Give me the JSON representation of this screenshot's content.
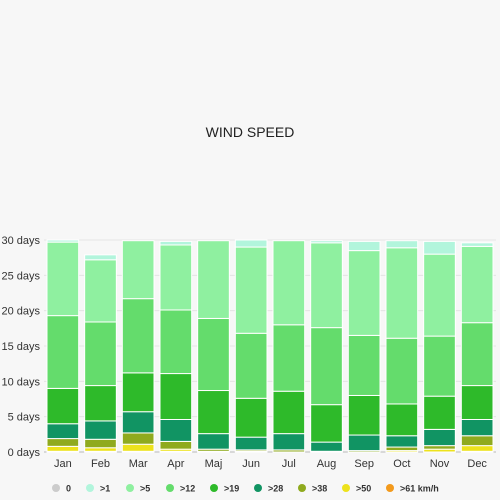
{
  "chart_data": {
    "type": "bar",
    "stacked": true,
    "title": "WIND SPEED",
    "xlabel": "",
    "ylabel": "",
    "ylim": [
      0,
      30
    ],
    "y_ticks": [
      {
        "value": 0,
        "label": "0 days"
      },
      {
        "value": 5,
        "label": "5 days"
      },
      {
        "value": 10,
        "label": "10 days"
      },
      {
        "value": 15,
        "label": "15 days"
      },
      {
        "value": 20,
        "label": "20 days"
      },
      {
        "value": 25,
        "label": "25 days"
      },
      {
        "value": 30,
        "label": "30 days"
      }
    ],
    "grid": true,
    "legend_position": "bottom",
    "categories": [
      "Jan",
      "Feb",
      "Mar",
      "Apr",
      "Maj",
      "Jun",
      "Jul",
      "Aug",
      "Sep",
      "Oct",
      "Nov",
      "Dec"
    ],
    "series": [
      {
        "name": "0",
        "color": "#cccccc",
        "values": [
          0,
          0,
          0,
          0,
          0,
          0,
          0,
          0,
          0,
          0,
          0,
          0
        ]
      },
      {
        "name": ">1",
        "color": "#b2f5dc",
        "values": [
          0.3,
          0.7,
          0,
          0.5,
          0,
          1,
          0,
          0.3,
          1.3,
          1,
          1.8,
          0.5
        ]
      },
      {
        "name": ">5",
        "color": "#8ff0a0",
        "values": [
          10.4,
          8.8,
          8.2,
          9.2,
          11,
          12.2,
          11.9,
          12,
          12,
          12.8,
          11.6,
          10.8
        ]
      },
      {
        "name": ">12",
        "color": "#64dc6c",
        "values": [
          10.3,
          9,
          10.5,
          9,
          10.2,
          9.2,
          9.4,
          10.9,
          8.5,
          9.3,
          8.5,
          8.9
        ]
      },
      {
        "name": ">19",
        "color": "#2eba2a",
        "values": [
          5,
          5,
          5.5,
          6.5,
          6.1,
          5.5,
          6,
          5.3,
          5.6,
          4.5,
          4.7,
          4.8
        ]
      },
      {
        "name": ">28",
        "color": "#119463",
        "values": [
          2.1,
          2.6,
          3,
          3.1,
          2.2,
          1.8,
          2.3,
          1.3,
          2.2,
          1.6,
          2.3,
          2.3
        ]
      },
      {
        "name": ">38",
        "color": "#8faa1e",
        "values": [
          1.1,
          1.2,
          1.6,
          1.1,
          0.3,
          0.2,
          0.3,
          0.1,
          0.2,
          0.5,
          0.5,
          1.4
        ]
      },
      {
        "name": ">50",
        "color": "#ede21c",
        "values": [
          0.7,
          0.5,
          1,
          0.3,
          0.1,
          0.1,
          0,
          0,
          0,
          0.2,
          0.4,
          0.8
        ]
      },
      {
        "name": ">61 km/h",
        "color": "#f39a1c",
        "values": [
          0.1,
          0.1,
          0.1,
          0.1,
          0,
          0,
          0,
          0,
          0,
          0,
          0,
          0.1
        ]
      }
    ]
  }
}
